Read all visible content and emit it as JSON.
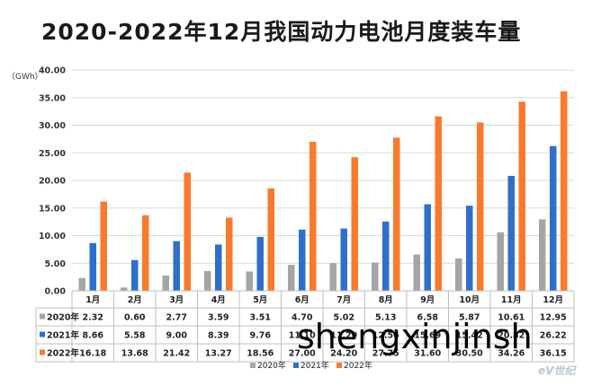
{
  "chart_data": {
    "type": "bar",
    "title": "2020-2022年12月我国动力电池月度装车量",
    "unit": "（GWh）",
    "categories": [
      "1月",
      "2月",
      "3月",
      "4月",
      "5月",
      "6月",
      "7月",
      "8月",
      "9月",
      "10月",
      "11月",
      "12月"
    ],
    "ylim": [
      0,
      40
    ],
    "yticks": [
      "0.00",
      "5.00",
      "10.00",
      "15.00",
      "20.00",
      "25.00",
      "30.00",
      "35.00",
      "40.00"
    ],
    "grid": true,
    "legend_position": "bottom",
    "series": [
      {
        "name": "2020年",
        "color": "#a5a5a5",
        "values": [
          2.32,
          0.6,
          2.77,
          3.59,
          3.51,
          4.7,
          5.02,
          5.13,
          6.58,
          5.87,
          10.61,
          12.95
        ],
        "labels": [
          "2.32",
          "0.60",
          "2.77",
          "3.59",
          "3.51",
          "4.70",
          "5.02",
          "5.13",
          "6.58",
          "5.87",
          "10.61",
          "12.95"
        ]
      },
      {
        "name": "2021年",
        "color": "#2f6fcc",
        "values": [
          8.66,
          5.58,
          9.0,
          8.39,
          9.76,
          11.1,
          11.29,
          12.56,
          15.69,
          15.42,
          20.82,
          26.22
        ],
        "labels": [
          "8.66",
          "5.58",
          "9.00",
          "8.39",
          "9.76",
          "11.10",
          "11.29",
          "12.56",
          "15.69",
          "15.42",
          "20.82",
          "26.22"
        ]
      },
      {
        "name": "2022年",
        "color": "#f97a2c",
        "values": [
          16.18,
          13.68,
          21.42,
          13.27,
          18.56,
          27.0,
          24.2,
          27.75,
          31.6,
          30.5,
          34.26,
          36.15
        ],
        "labels": [
          "16.18",
          "13.68",
          "21.42",
          "13.27",
          "18.56",
          "27.00",
          "24.20",
          "27.75",
          "31.60",
          "30.50",
          "34.26",
          "36.15"
        ]
      }
    ]
  },
  "watermark": {
    "text": "shengxinjinsh",
    "brand": "eV世纪"
  }
}
